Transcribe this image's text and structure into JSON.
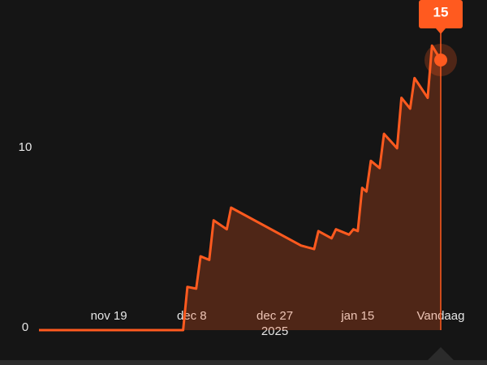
{
  "chart_data": {
    "type": "area",
    "x": [
      0,
      33,
      34,
      36,
      37,
      39,
      40,
      43,
      44,
      60,
      63,
      64,
      67,
      68,
      71,
      72,
      73,
      74,
      75,
      76,
      78,
      79,
      82,
      83,
      85,
      86,
      89,
      90,
      92
    ],
    "values": [
      0,
      0,
      2.4,
      2.3,
      4.1,
      3.9,
      6.1,
      5.6,
      6.8,
      4.7,
      4.5,
      5.5,
      5.1,
      5.6,
      5.3,
      5.6,
      5.5,
      7.9,
      7.7,
      9.4,
      9.0,
      10.9,
      10.1,
      12.9,
      12.3,
      14.0,
      12.9,
      15.8,
      15
    ],
    "color": "#ff5a1f",
    "xlim": [
      0,
      92
    ],
    "xticks": [
      {
        "value": 16,
        "label": "nov 19"
      },
      {
        "value": 35,
        "label": "dec 8"
      },
      {
        "value": 54,
        "label": "dec 27"
      },
      {
        "value": 73,
        "label": "jan 15"
      },
      {
        "value": 92,
        "label": "Vandaag"
      }
    ],
    "year_label": "2025",
    "ylim": [
      0,
      17
    ],
    "yticks": [
      0,
      10
    ]
  }
}
